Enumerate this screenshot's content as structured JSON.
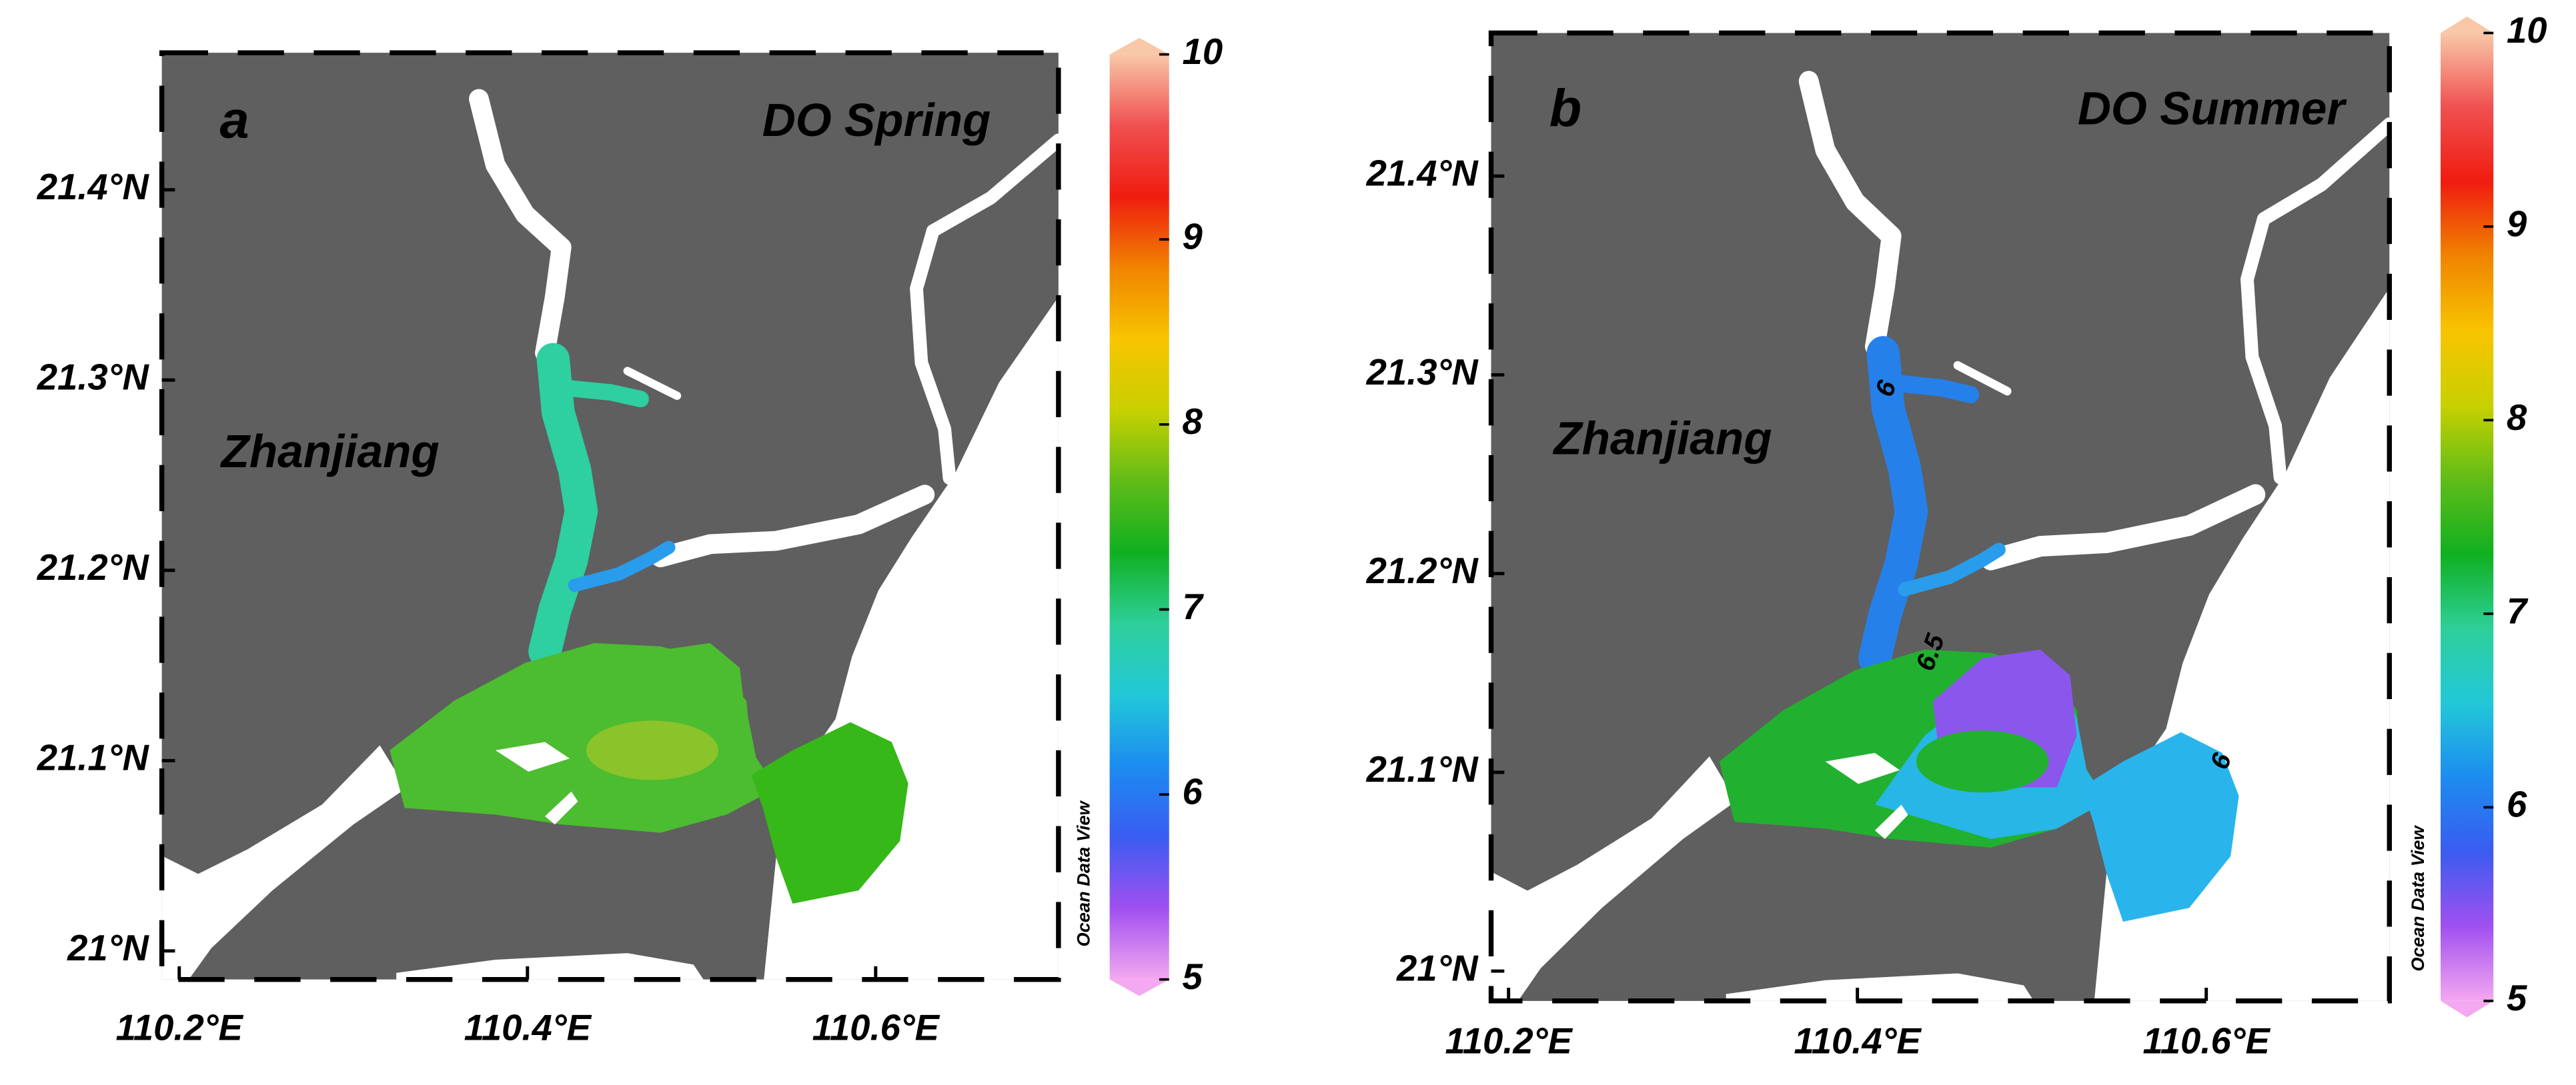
{
  "panels": [
    {
      "label": "a",
      "title": "DO Spring",
      "place_label": "Zhanjiang",
      "xlim": [
        110.19,
        110.705
      ],
      "ylim": [
        20.985,
        21.472
      ],
      "xticks": [
        {
          "value": 110.2,
          "label": "110.2°E"
        },
        {
          "value": 110.4,
          "label": "110.4°E"
        },
        {
          "value": 110.6,
          "label": "110.6°E"
        }
      ],
      "yticks": [
        {
          "value": 21,
          "label": "21°N"
        },
        {
          "value": 21.1,
          "label": "21.1°N"
        },
        {
          "value": 21.2,
          "label": "21.2°N"
        },
        {
          "value": 21.3,
          "label": "21.3°N"
        },
        {
          "value": 21.4,
          "label": "21.4°N"
        }
      ],
      "colorbar": {
        "lim": [
          5,
          10
        ],
        "ticks": [
          5,
          6,
          7,
          8,
          9,
          10
        ],
        "colors": [
          "#f4a8f0",
          "#a050f0",
          "#3a5cf0",
          "#1c8cf0",
          "#22c8d8",
          "#2ecf9a",
          "#10b020",
          "#60bc18",
          "#c8d000",
          "#f8c400",
          "#f08400",
          "#f01c10",
          "#f05050",
          "#f8c8a8"
        ]
      },
      "credit": "Ocean Data View"
    },
    {
      "label": "b",
      "title": "DO Summer",
      "place_label": "Zhanjiang",
      "xlim": [
        110.19,
        110.705
      ],
      "ylim": [
        20.985,
        21.472
      ],
      "xticks": [
        {
          "value": 110.2,
          "label": "110.2°E"
        },
        {
          "value": 110.4,
          "label": "110.4°E"
        },
        {
          "value": 110.6,
          "label": "110.6°E"
        }
      ],
      "yticks": [
        {
          "value": 21,
          "label": "21°N"
        },
        {
          "value": 21.1,
          "label": "21.1°N"
        },
        {
          "value": 21.2,
          "label": "21.2°N"
        },
        {
          "value": 21.3,
          "label": "21.3°N"
        },
        {
          "value": 21.4,
          "label": "21.4°N"
        }
      ],
      "colorbar": {
        "lim": [
          5,
          10
        ],
        "ticks": [
          5,
          6,
          7,
          8,
          9,
          10
        ],
        "colors": [
          "#f4a8f0",
          "#a050f0",
          "#3a5cf0",
          "#1c8cf0",
          "#22c8d8",
          "#2ecf9a",
          "#10b020",
          "#60bc18",
          "#c8d000",
          "#f8c400",
          "#f08400",
          "#f01c10",
          "#f05050",
          "#f8c8a8"
        ]
      },
      "credit": "Ocean Data View",
      "contour_labels": [
        6,
        6.5,
        6
      ]
    }
  ]
}
